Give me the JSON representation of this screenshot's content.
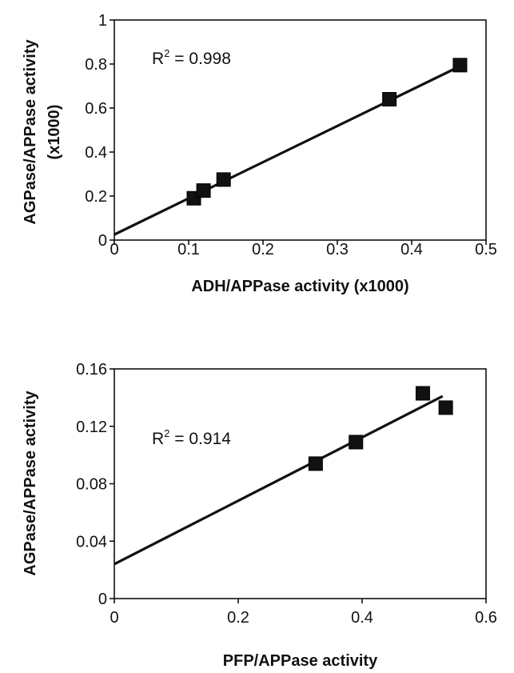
{
  "chart_data": [
    {
      "type": "scatter",
      "xlabel": "ADH/APPase activity (x1000)",
      "ylabel": "AGPase/APPase activity",
      "ylabel_line2": "(x1000)",
      "annotation": {
        "prefix": "R",
        "sup": "2",
        "rest": " = 0.998"
      },
      "xlim": [
        0,
        0.5
      ],
      "ylim": [
        0,
        1
      ],
      "xticks": [
        0,
        0.1,
        0.2,
        0.3,
        0.4,
        0.5
      ],
      "xtick_labels": [
        "0",
        "0.1",
        "0.2",
        "0.3",
        "0.4",
        "0.5"
      ],
      "yticks": [
        0,
        0.2,
        0.4,
        0.6,
        0.8,
        1
      ],
      "ytick_labels": [
        "0",
        "0.2",
        "0.4",
        "0.6",
        "0.8",
        "1"
      ],
      "grid": false,
      "marker": "square",
      "color": "#111111",
      "points": [
        {
          "x": 0.107,
          "y": 0.19
        },
        {
          "x": 0.12,
          "y": 0.225
        },
        {
          "x": 0.147,
          "y": 0.275
        },
        {
          "x": 0.37,
          "y": 0.64
        },
        {
          "x": 0.465,
          "y": 0.795
        }
      ],
      "trendline": {
        "x": [
          0,
          0.465
        ],
        "y": [
          0.025,
          0.79
        ]
      }
    },
    {
      "type": "scatter",
      "xlabel": "PFP/APPase activity",
      "ylabel": "AGPase/APPase activity",
      "annotation": {
        "prefix": "R",
        "sup": "2",
        "rest": " = 0.914"
      },
      "xlim": [
        0,
        0.6
      ],
      "ylim": [
        0,
        0.16
      ],
      "xticks": [
        0,
        0.2,
        0.4,
        0.6
      ],
      "xtick_labels": [
        "0",
        "0.2",
        "0.4",
        "0.6"
      ],
      "yticks": [
        0,
        0.04,
        0.08,
        0.12,
        0.16
      ],
      "ytick_labels": [
        "0",
        "0.04",
        "0.08",
        "0.12",
        "0.16"
      ],
      "grid": false,
      "marker": "square",
      "color": "#111111",
      "points": [
        {
          "x": 0.325,
          "y": 0.094
        },
        {
          "x": 0.39,
          "y": 0.109
        },
        {
          "x": 0.498,
          "y": 0.143
        },
        {
          "x": 0.535,
          "y": 0.133
        }
      ],
      "trendline": {
        "x": [
          0,
          0.53
        ],
        "y": [
          0.024,
          0.141
        ]
      }
    }
  ]
}
